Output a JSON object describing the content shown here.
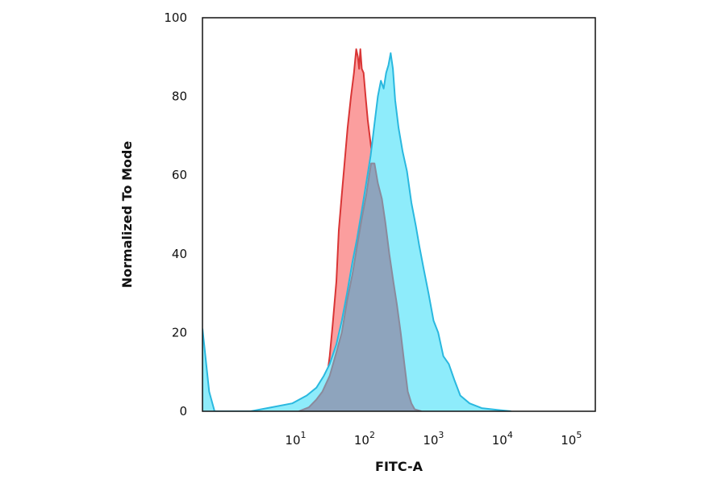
{
  "chart_data": {
    "type": "area",
    "title": "",
    "xlabel": "FITC-A",
    "ylabel": "Normalized To Mode",
    "x_scale": "log",
    "xlim": [
      0.4,
      200000
    ],
    "ylim": [
      0,
      100
    ],
    "x_ticks": [
      {
        "value": 10,
        "base": "10",
        "exp": "1"
      },
      {
        "value": 100,
        "base": "10",
        "exp": "2"
      },
      {
        "value": 1000,
        "base": "10",
        "exp": "3"
      },
      {
        "value": 10000,
        "base": "10",
        "exp": "4"
      },
      {
        "value": 100000,
        "base": "10",
        "exp": "5"
      }
    ],
    "y_ticks": [
      0,
      20,
      40,
      60,
      80,
      100
    ],
    "grid": false,
    "legend": "none",
    "series": [
      {
        "fill": "#fb9e9e",
        "stroke": "#d93535",
        "points": [
          [
            10,
            0
          ],
          [
            18,
            1
          ],
          [
            24,
            5
          ],
          [
            28,
            14
          ],
          [
            31,
            22
          ],
          [
            35,
            33
          ],
          [
            38,
            46
          ],
          [
            42,
            55
          ],
          [
            46,
            63
          ],
          [
            51,
            72
          ],
          [
            57,
            80
          ],
          [
            63,
            86
          ],
          [
            68,
            92
          ],
          [
            72,
            90
          ],
          [
            75,
            87
          ],
          [
            78,
            92
          ],
          [
            82,
            87
          ],
          [
            87,
            86
          ],
          [
            93,
            80
          ],
          [
            100,
            74
          ],
          [
            112,
            67
          ],
          [
            125,
            63
          ],
          [
            140,
            58
          ],
          [
            160,
            54
          ],
          [
            180,
            48
          ],
          [
            205,
            40
          ],
          [
            235,
            33
          ],
          [
            265,
            27
          ],
          [
            300,
            20
          ],
          [
            340,
            12
          ],
          [
            380,
            5
          ],
          [
            430,
            2
          ],
          [
            480,
            0.5
          ],
          [
            600,
            0
          ]
        ]
      },
      {
        "fill": "#8eecfb",
        "stroke": "#2ab8df",
        "points": [
          [
            0.4,
            21
          ],
          [
            0.5,
            5
          ],
          [
            0.6,
            0
          ],
          [
            2,
            0
          ],
          [
            4,
            1
          ],
          [
            8,
            2
          ],
          [
            13,
            4
          ],
          [
            18,
            6
          ],
          [
            23,
            9
          ],
          [
            28,
            12
          ],
          [
            35,
            17
          ],
          [
            42,
            23
          ],
          [
            50,
            30
          ],
          [
            60,
            38
          ],
          [
            70,
            44
          ],
          [
            82,
            51
          ],
          [
            95,
            58
          ],
          [
            110,
            65
          ],
          [
            125,
            73
          ],
          [
            140,
            80
          ],
          [
            155,
            84
          ],
          [
            170,
            82
          ],
          [
            185,
            86
          ],
          [
            200,
            88
          ],
          [
            215,
            91
          ],
          [
            232,
            87
          ],
          [
            250,
            79
          ],
          [
            280,
            72
          ],
          [
            320,
            66
          ],
          [
            370,
            61
          ],
          [
            430,
            53
          ],
          [
            500,
            47
          ],
          [
            560,
            42
          ],
          [
            650,
            36
          ],
          [
            760,
            30
          ],
          [
            900,
            23
          ],
          [
            1050,
            20
          ],
          [
            1250,
            14
          ],
          [
            1500,
            12
          ],
          [
            1800,
            8
          ],
          [
            2200,
            4
          ],
          [
            3000,
            2
          ],
          [
            4500,
            0.8
          ],
          [
            8000,
            0.3
          ],
          [
            12000,
            0
          ]
        ]
      },
      {
        "fill": "#8ea4bd",
        "stroke": "#8a8a9c",
        "points": [
          [
            10,
            0
          ],
          [
            14,
            1
          ],
          [
            18,
            3
          ],
          [
            22,
            5
          ],
          [
            28,
            9
          ],
          [
            35,
            15
          ],
          [
            42,
            20
          ],
          [
            50,
            28
          ],
          [
            60,
            35
          ],
          [
            70,
            42
          ],
          [
            82,
            49
          ],
          [
            95,
            55
          ],
          [
            105,
            60
          ],
          [
            112,
            63
          ],
          [
            125,
            63
          ],
          [
            140,
            58
          ],
          [
            160,
            54
          ],
          [
            180,
            48
          ],
          [
            205,
            40
          ],
          [
            235,
            33
          ],
          [
            265,
            27
          ],
          [
            300,
            20
          ],
          [
            340,
            12
          ],
          [
            380,
            5
          ],
          [
            430,
            2
          ],
          [
            480,
            0.5
          ],
          [
            600,
            0
          ]
        ]
      }
    ]
  }
}
